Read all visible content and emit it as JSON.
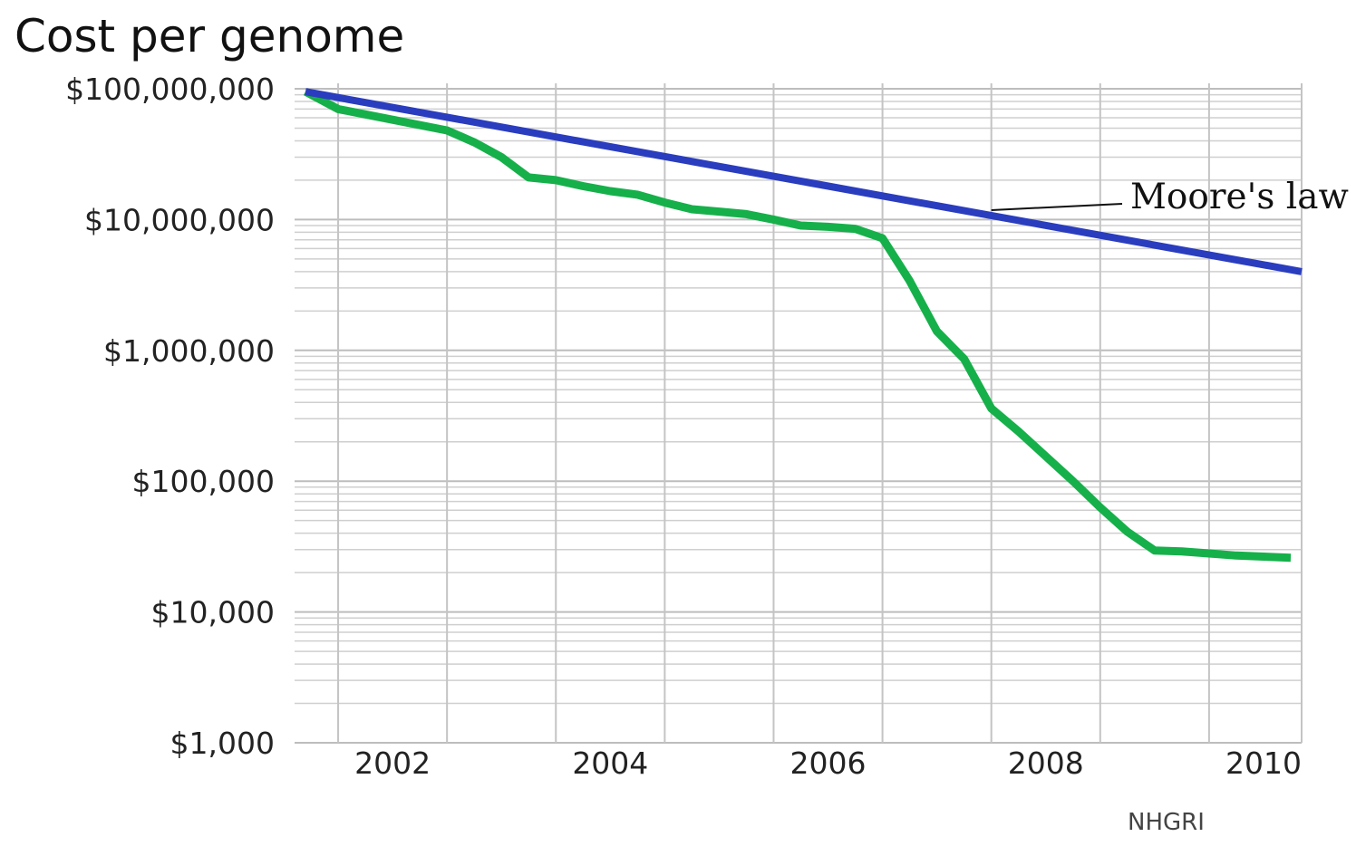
{
  "chart_data": {
    "type": "line",
    "title": "Cost per genome",
    "source": "NHGRI",
    "y_scale": "log",
    "ylim": [
      1000,
      100000000
    ],
    "xlim": [
      2001.6,
      2010.85
    ],
    "y_ticks": [
      {
        "value": 100000000,
        "label": "$100,000,000"
      },
      {
        "value": 10000000,
        "label": "$10,000,000"
      },
      {
        "value": 1000000,
        "label": "$1,000,000"
      },
      {
        "value": 100000,
        "label": "$100,000"
      },
      {
        "value": 10000,
        "label": "$10,000"
      },
      {
        "value": 1000,
        "label": "$1,000"
      }
    ],
    "x_ticks": [
      {
        "value": 2002,
        "label": "2002"
      },
      {
        "value": 2004,
        "label": "2004"
      },
      {
        "value": 2006,
        "label": "2006"
      },
      {
        "value": 2008,
        "label": "2008"
      },
      {
        "value": 2010,
        "label": "2010"
      }
    ],
    "grid": true,
    "series": [
      {
        "name": "Moore's law",
        "color": "#2a3dbf",
        "labeled": true,
        "x": [
          2001.7,
          2010.85
        ],
        "y": [
          95000000,
          4000000
        ]
      },
      {
        "name": "",
        "color": "#16b04a",
        "labeled": false,
        "x": [
          2001.7,
          2002.0,
          2002.5,
          2003.0,
          2003.25,
          2003.5,
          2003.75,
          2004.0,
          2004.25,
          2004.5,
          2004.75,
          2005.0,
          2005.25,
          2005.5,
          2005.75,
          2006.0,
          2006.25,
          2006.5,
          2006.75,
          2007.0,
          2007.25,
          2007.5,
          2007.75,
          2008.0,
          2008.25,
          2008.5,
          2008.75,
          2009.0,
          2009.25,
          2009.5,
          2009.75,
          2010.0,
          2010.25,
          2010.5,
          2010.75
        ],
        "y": [
          95000000,
          70000000,
          58000000,
          48000000,
          39000000,
          30000000,
          21000000,
          20000000,
          18000000,
          16500000,
          15500000,
          13500000,
          12000000,
          11500000,
          11000000,
          10000000,
          9000000,
          8800000,
          8500000,
          7200000,
          3400000,
          1400000,
          860000,
          360000,
          240000,
          155000,
          100000,
          63000,
          41000,
          29500,
          29000,
          28000,
          27000,
          26500,
          26000
        ]
      }
    ]
  }
}
